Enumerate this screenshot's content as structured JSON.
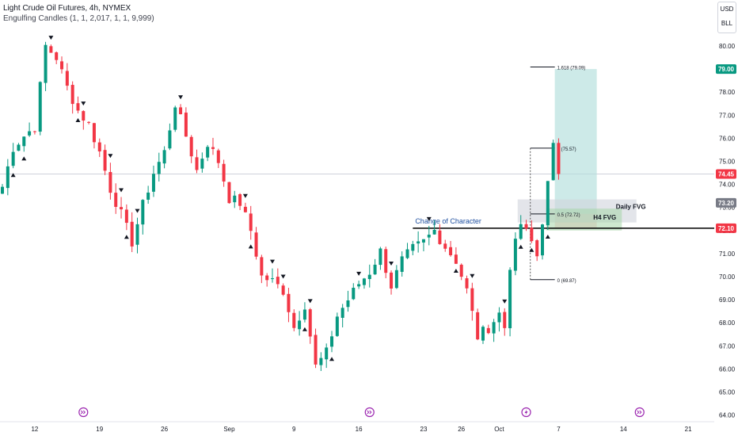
{
  "header": {
    "title": "Light Crude Oil Futures, 4h, NYMEX",
    "indicator": "Engulfing Candles (1, 1, 2,017, 1, 1, 9,999)"
  },
  "corner": {
    "currency": "USD",
    "unit": "BLL"
  },
  "chart_data": {
    "type": "candlestick",
    "yaxis": {
      "ticks": [
        64.0,
        65.0,
        66.0,
        67.0,
        68.0,
        69.0,
        70.0,
        71.0,
        72.0,
        73.0,
        74.0,
        75.0,
        76.0,
        77.0,
        78.0,
        79.0,
        80.0
      ]
    },
    "xaxis": {
      "ticks": [
        {
          "label": "12",
          "bar": 6
        },
        {
          "label": "19",
          "bar": 18
        },
        {
          "label": "26",
          "bar": 30
        },
        {
          "label": "Sep",
          "bar": 42
        },
        {
          "label": "9",
          "bar": 54
        },
        {
          "label": "16",
          "bar": 66
        },
        {
          "label": "23",
          "bar": 78
        },
        {
          "label": "26",
          "bar": 85
        },
        {
          "label": "Oct",
          "bar": 92
        },
        {
          "label": "7",
          "bar": 103
        },
        {
          "label": "14",
          "bar": 115
        },
        {
          "label": "21",
          "bar": 127
        }
      ]
    },
    "price_tags": [
      {
        "label": "79.00",
        "value": 79.0,
        "color": "#089981"
      },
      {
        "label": "74.45",
        "value": 74.45,
        "color": "#f23645"
      },
      {
        "label": "73.20",
        "value": 73.2,
        "color": "#787b86"
      },
      {
        "label": "72.10",
        "value": 72.1,
        "color": "#f23645"
      }
    ],
    "current_price": 74.45,
    "waypoints": [
      [
        0,
        73.9
      ],
      [
        2,
        75.6
      ],
      [
        4,
        76.1
      ],
      [
        6,
        76.5
      ],
      [
        8,
        80.0
      ],
      [
        10,
        79.5
      ],
      [
        12,
        78.2
      ],
      [
        14,
        77.2
      ],
      [
        16,
        76.6
      ],
      [
        18,
        75.4
      ],
      [
        20,
        73.8
      ],
      [
        22,
        72.7
      ],
      [
        24,
        71.5
      ],
      [
        26,
        73.1
      ],
      [
        28,
        74.5
      ],
      [
        30,
        75.4
      ],
      [
        32,
        77.5
      ],
      [
        34,
        76.1
      ],
      [
        36,
        74.6
      ],
      [
        38,
        75.8
      ],
      [
        40,
        75.0
      ],
      [
        42,
        73.4
      ],
      [
        44,
        73.2
      ],
      [
        46,
        72.0
      ],
      [
        48,
        70.0
      ],
      [
        50,
        69.8
      ],
      [
        52,
        69.4
      ],
      [
        54,
        67.8
      ],
      [
        56,
        68.8
      ],
      [
        58,
        66.1
      ],
      [
        60,
        66.7
      ],
      [
        62,
        68.3
      ],
      [
        64,
        69.0
      ],
      [
        66,
        69.7
      ],
      [
        68,
        70.2
      ],
      [
        70,
        71.1
      ],
      [
        72,
        69.6
      ],
      [
        74,
        70.7
      ],
      [
        76,
        71.2
      ],
      [
        78,
        71.5
      ],
      [
        80,
        72.0
      ],
      [
        82,
        71.3
      ],
      [
        84,
        70.7
      ],
      [
        86,
        69.4
      ],
      [
        88,
        67.4
      ],
      [
        90,
        67.8
      ],
      [
        92,
        68.4
      ],
      [
        93,
        67.8
      ],
      [
        94,
        70.5
      ],
      [
        96,
        72.3
      ],
      [
        98,
        71.5
      ],
      [
        99,
        70.9
      ],
      [
        101,
        74.0
      ],
      [
        102,
        75.6
      ],
      [
        103,
        74.45
      ]
    ],
    "bullish_markers": [
      2,
      4,
      14,
      23,
      46,
      56,
      61,
      84,
      96,
      98,
      101
    ],
    "bearish_markers": [
      9,
      15,
      20,
      22,
      25,
      33,
      45,
      50,
      52,
      57,
      66,
      72,
      79,
      87,
      93
    ],
    "drawings": {
      "fib_levels": [
        {
          "label": "1.618 (79.09)",
          "value": 79.09
        },
        {
          "label": "1 (75.57)",
          "value": 75.57
        },
        {
          "label": "0.5 (72.72)",
          "value": 72.72
        },
        {
          "label": "0 (69.87)",
          "value": 69.87
        }
      ],
      "long_position": {
        "entry": 72.72,
        "target": 79.0,
        "stop": 72.1
      },
      "fvg_zones": [
        {
          "label": "Daily FVG",
          "top": 73.35,
          "bottom": 72.35,
          "from_bar": 96,
          "to_bar": 118
        },
        {
          "label": "H4 FVG",
          "top": 72.95,
          "bottom": 72.0,
          "from_bar": 101,
          "to_bar": 115
        }
      ],
      "choch": {
        "label": "Change of Character",
        "value": 72.1,
        "from_bar": 76,
        "to_bar": 124
      }
    },
    "event_markers": [
      {
        "icon": "arrows-icon",
        "bar": 15
      },
      {
        "icon": "arrows-icon",
        "bar": 68
      },
      {
        "icon": "bolt-icon",
        "bar": 97
      },
      {
        "icon": "arrows-icon",
        "bar": 118
      }
    ]
  }
}
